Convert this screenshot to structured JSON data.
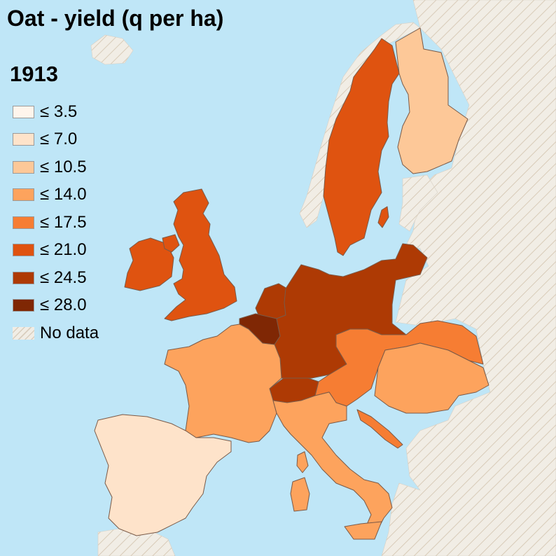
{
  "map": {
    "title": "Oat - yield (q per ha)",
    "year": "1913",
    "sea_color": "#bfe6f7",
    "nodata_label": "No data",
    "legend": [
      {
        "label": "≤ 3.5",
        "color": "#fff5ec"
      },
      {
        "label": "≤ 7.0",
        "color": "#fee3ca"
      },
      {
        "label": "≤ 10.5",
        "color": "#fdc898"
      },
      {
        "label": "≤ 14.0",
        "color": "#fda35d"
      },
      {
        "label": "≤ 17.5",
        "color": "#f67d33"
      },
      {
        "label": "≤ 21.0",
        "color": "#df5310"
      },
      {
        "label": "≤ 24.5",
        "color": "#ae3a04"
      },
      {
        "label": "≤ 28.0",
        "color": "#7f2704"
      }
    ],
    "regions": [
      {
        "name": "Sweden",
        "class": "≤ 21.0"
      },
      {
        "name": "Norway",
        "class": "No data"
      },
      {
        "name": "Finland",
        "class": "≤ 10.5"
      },
      {
        "name": "Ireland",
        "class": "≤ 21.0"
      },
      {
        "name": "United Kingdom",
        "class": "≤ 21.0"
      },
      {
        "name": "Netherlands",
        "class": "≤ 24.5"
      },
      {
        "name": "Belgium",
        "class": "≤ 28.0"
      },
      {
        "name": "Germany",
        "class": "≤ 24.5"
      },
      {
        "name": "Switzerland",
        "class": "≤ 24.5"
      },
      {
        "name": "France",
        "class": "≤ 14.0"
      },
      {
        "name": "Austria",
        "class": "≤ 17.5"
      },
      {
        "name": "Hungary",
        "class": "≤ 14.0"
      },
      {
        "name": "Italy",
        "class": "≤ 14.0"
      },
      {
        "name": "Spain",
        "class": "≤ 7.0"
      }
    ]
  }
}
